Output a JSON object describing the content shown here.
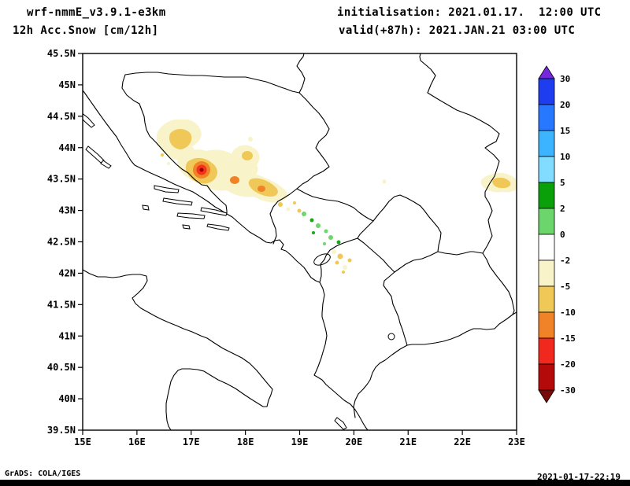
{
  "header": {
    "model": "wrf-nmmE_v3.9.1-e3km",
    "product": "12h Acc.Snow [cm/12h]",
    "init": "initialisation: 2021.01.17.  12:00 UTC",
    "valid": "valid(+87h): 2021.JAN.21 03:00 UTC"
  },
  "footer": {
    "grads": "GrADS: COLA/IGES",
    "timestamp": "2021-01-17-22:19"
  },
  "axes": {
    "y_ticks": [
      "45.5N",
      "45N",
      "44.5N",
      "44N",
      "43.5N",
      "43N",
      "42.5N",
      "42N",
      "41.5N",
      "41N",
      "40.5N",
      "40N",
      "39.5N"
    ],
    "x_ticks": [
      "15E",
      "16E",
      "17E",
      "18E",
      "19E",
      "20E",
      "21E",
      "22E",
      "23E"
    ]
  },
  "colorbar": {
    "labels": [
      "30",
      "20",
      "15",
      "10",
      "5",
      "2",
      "0",
      "-2",
      "-5",
      "-10",
      "-15",
      "-20",
      "-30"
    ],
    "segment_colors": [
      "#1E3CF0",
      "#2878FF",
      "#3CB4FF",
      "#82DCFF",
      "#0AA00A",
      "#6CD66C",
      "#FFFFFF",
      "#F8F3C9",
      "#EFC857",
      "#F08228",
      "#F0281E",
      "#B40A0A"
    ],
    "top_arrow_color": "#7828DC",
    "bottom_arrow_color": "#780A0A"
  },
  "palette": {
    "pale": "#F8F3C9",
    "gold": "#EFC857",
    "orange": "#F08228",
    "red": "#F0321E",
    "dark_red": "#A00000",
    "green_light": "#6CD66C",
    "green_dark": "#18A818",
    "line": "#000000"
  },
  "map": {
    "lon_range": "15E to 23E",
    "lat_range": "39.5N to 45.5N",
    "shading_summary": [
      {
        "color": "pale-yellow / gold band",
        "location": "16.3E-19.3E, 42.9N-44.5N"
      },
      {
        "color": "orange-red maximum",
        "location": "near 17.4E, 43.6N"
      },
      {
        "color": "green speckles",
        "location": "19.3E-20.2E, 42.3N-43.2N"
      },
      {
        "color": "pale-yellow / gold patch",
        "location": "22.5E-23E, near 43.5N"
      }
    ]
  }
}
